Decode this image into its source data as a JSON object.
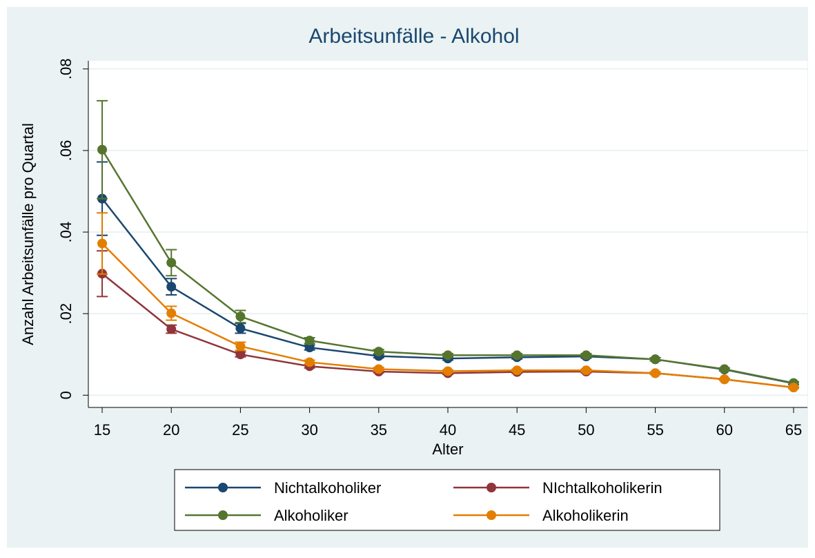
{
  "chart_data": {
    "type": "line",
    "title": "Arbeitsunfälle - Alkohol",
    "x_label": "Alter",
    "y_label": "Anzahl Arbeitsunfälle pro Quartal",
    "x": [
      15,
      20,
      25,
      30,
      35,
      40,
      45,
      50,
      55,
      60,
      65
    ],
    "xlim": [
      14,
      66
    ],
    "xticks": [
      15,
      20,
      25,
      30,
      35,
      40,
      45,
      50,
      55,
      60,
      65
    ],
    "ylim": [
      -0.003,
      0.082
    ],
    "yticks": [
      0,
      {
        "value": 0.02,
        "label": ".02"
      },
      {
        "value": 0.04,
        "label": ".04"
      },
      {
        "value": 0.06,
        "label": ".06"
      },
      {
        "value": 0.08,
        "label": ".08"
      }
    ],
    "grid": true,
    "legend_position": "bottom",
    "series": [
      {
        "name": "Nichtalkoholiker",
        "color": "#1a476f",
        "values": [
          0.0482,
          0.0266,
          0.0164,
          0.0117,
          0.0096,
          0.009,
          0.0093,
          0.0095,
          0.0088,
          0.0063,
          0.0029
        ],
        "errors": [
          0.009,
          0.002,
          0.0012,
          0.0006,
          0.0004,
          0.0004,
          0.0004,
          0.0004,
          0.0004,
          0.0003,
          0.0003
        ]
      },
      {
        "name": "NIchtalkoholikerin",
        "color": "#90353b",
        "values": [
          0.0298,
          0.0162,
          0.01,
          0.0071,
          0.0058,
          0.0054,
          0.0057,
          0.0058,
          0.0054,
          0.0039,
          0.0019
        ],
        "errors": [
          0.0056,
          0.001,
          0.0006,
          0.0004,
          0.0003,
          0.0003,
          0.0003,
          0.0003,
          0.0003,
          0.0002,
          0.0002
        ]
      },
      {
        "name": "Alkoholiker",
        "color": "#55752f",
        "values": [
          0.0602,
          0.0325,
          0.0193,
          0.0134,
          0.0107,
          0.0098,
          0.0098,
          0.0098,
          0.0088,
          0.0064,
          0.003
        ],
        "errors": [
          0.012,
          0.0032,
          0.0015,
          0.0007,
          0.0005,
          0.0004,
          0.0004,
          0.0004,
          0.0004,
          0.0003,
          0.0003
        ]
      },
      {
        "name": "Alkoholikerin",
        "color": "#e37e00",
        "values": [
          0.0372,
          0.0201,
          0.012,
          0.0081,
          0.0064,
          0.0059,
          0.0061,
          0.0061,
          0.0054,
          0.0039,
          0.0019
        ],
        "errors": [
          0.0075,
          0.0017,
          0.001,
          0.0005,
          0.0004,
          0.0003,
          0.0003,
          0.0003,
          0.0003,
          0.0002,
          0.0002
        ]
      }
    ]
  }
}
